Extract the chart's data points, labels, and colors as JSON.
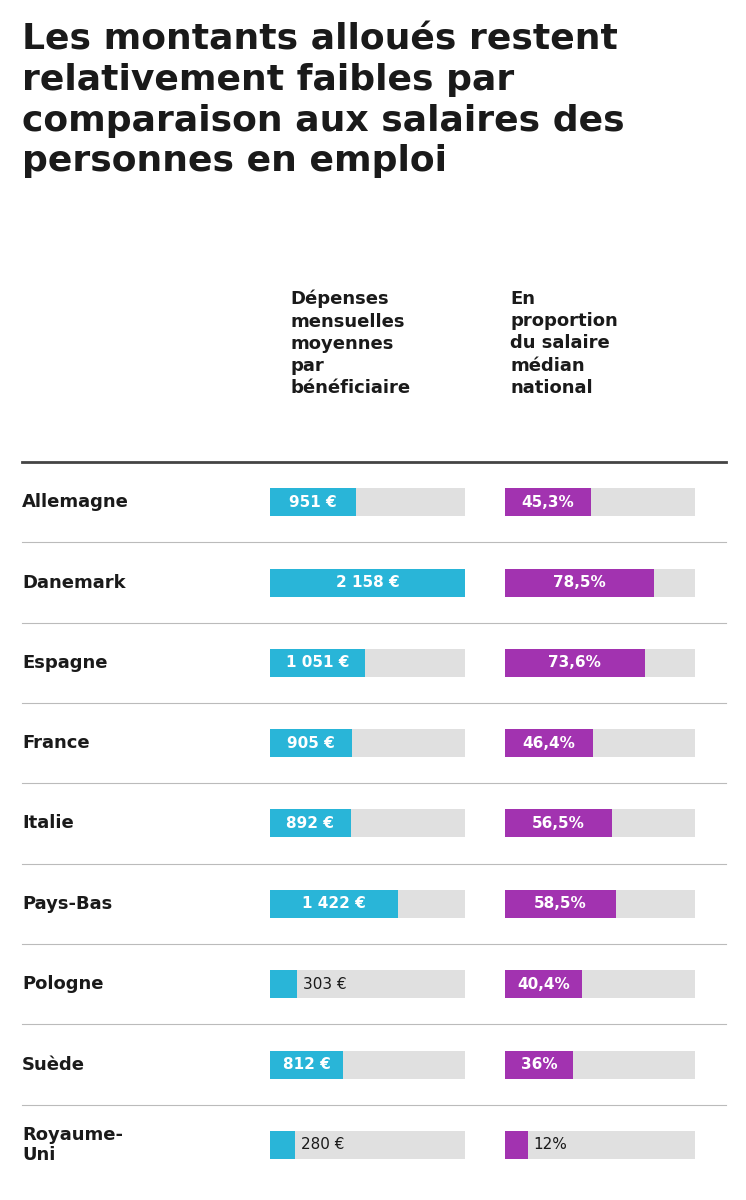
{
  "title": "Les montants alloués restent\nrelativement faibles par\ncomparaison aux salaires des\npersonnes en emploi",
  "col1_header": "Dépenses\nmensuelles\nmoyennes\npar\nbénéficiaire",
  "col2_header": "En\nproportion\ndu salaire\nmédian\nnational",
  "countries": [
    "Allemagne",
    "Danemark",
    "Espagne",
    "France",
    "Italie",
    "Pays-Bas",
    "Pologne",
    "Suède",
    "Royaume-\nUni"
  ],
  "amounts": [
    951,
    2158,
    1051,
    905,
    892,
    1422,
    303,
    812,
    280
  ],
  "amount_labels": [
    "951 €",
    "2 158 €",
    "1 051 €",
    "905 €",
    "892 €",
    "1 422 €",
    "303 €",
    "812 €",
    "280 €"
  ],
  "percentages": [
    45.3,
    78.5,
    73.6,
    46.4,
    56.5,
    58.5,
    40.4,
    36.0,
    12.0
  ],
  "pct_labels": [
    "45,3%",
    "78,5%",
    "73,6%",
    "46,4%",
    "56,5%",
    "58,5%",
    "40,4%",
    "36%",
    "12%"
  ],
  "max_amount": 2158,
  "bar_color_blue": "#29B5D8",
  "bar_color_purple": "#A233B0",
  "bg_color_gray": "#E0E0E0",
  "bg_color_white": "#FFFFFF",
  "text_color_dark": "#1A1A1A",
  "divider_color": "#444444",
  "sep_color": "#BBBBBB"
}
